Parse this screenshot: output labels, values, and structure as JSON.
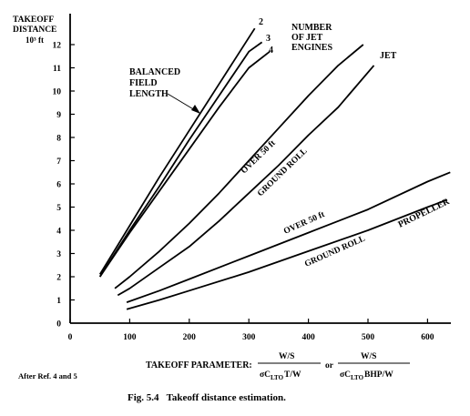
{
  "chart_data": {
    "type": "line",
    "ylabel_lines": [
      "TAKEOFF",
      "DISTANCE"
    ],
    "yunit": "10³ ft",
    "xlabel": "TAKEOFF PARAMETER:",
    "xlim": [
      0,
      650
    ],
    "ylim": [
      0,
      13
    ],
    "xticks": [
      0,
      100,
      200,
      300,
      400,
      500,
      600
    ],
    "yticks": [
      0,
      1,
      2,
      3,
      4,
      5,
      6,
      7,
      8,
      9,
      10,
      11,
      12
    ],
    "grid": false,
    "formula": {
      "jet_numerator": "W/S",
      "jet_denominator": "σC",
      "jet_sub": "LTO",
      "jet_tail": "T/W",
      "or": "or",
      "prop_numerator": "W/S",
      "prop_denominator": "σC",
      "prop_sub": "LTO",
      "prop_tail": "BHP/W"
    },
    "series": [
      {
        "name": "2",
        "x": [
          50,
          100,
          150,
          200,
          250,
          300,
          310
        ],
        "y": [
          2.1,
          4.2,
          6.3,
          8.3,
          10.3,
          12.3,
          12.7
        ]
      },
      {
        "name": "3",
        "x": [
          50,
          100,
          150,
          200,
          250,
          300,
          322
        ],
        "y": [
          2.0,
          4.0,
          5.9,
          7.9,
          9.8,
          11.7,
          12.1
        ]
      },
      {
        "name": "4",
        "x": [
          50,
          100,
          150,
          200,
          250,
          300,
          335
        ],
        "y": [
          2.0,
          3.9,
          5.7,
          7.5,
          9.3,
          11.0,
          11.7
        ]
      },
      {
        "name": "JET OVER 50 ft",
        "x": [
          75,
          100,
          150,
          200,
          250,
          300,
          350,
          400,
          450,
          492
        ],
        "y": [
          1.5,
          2.0,
          3.1,
          4.3,
          5.6,
          7.0,
          8.4,
          9.8,
          11.1,
          12.0
        ]
      },
      {
        "name": "JET GROUND ROLL",
        "x": [
          80,
          100,
          150,
          200,
          250,
          300,
          350,
          400,
          450,
          510
        ],
        "y": [
          1.2,
          1.5,
          2.4,
          3.3,
          4.4,
          5.6,
          6.8,
          8.1,
          9.3,
          11.1
        ]
      },
      {
        "name": "PROPELLER OVER 50 ft",
        "x": [
          95,
          150,
          200,
          300,
          400,
          500,
          600,
          638
        ],
        "y": [
          0.9,
          1.4,
          1.9,
          2.9,
          3.9,
          4.9,
          6.1,
          6.5
        ]
      },
      {
        "name": "PROPELLER GROUND ROLL",
        "x": [
          95,
          150,
          200,
          300,
          400,
          500,
          600,
          632
        ],
        "y": [
          0.6,
          1.0,
          1.4,
          2.2,
          3.1,
          4.0,
          5.0,
          5.3
        ]
      }
    ],
    "annotations": {
      "engine_count_title": [
        "NUMBER",
        "OF JET",
        "ENGINES"
      ],
      "engine_labels": [
        "2",
        "3",
        "4"
      ],
      "balanced_field": [
        "BALANCED",
        "FIELD",
        "LENGTH"
      ],
      "jet": "JET",
      "propeller": "PROPELLER",
      "jet_over50": "OVER 50 ft",
      "jet_ground_roll": "GROUND ROLL",
      "prop_over50": "OVER 50 ft",
      "prop_ground_roll": "GROUND ROLL"
    }
  },
  "source_note": "After Ref. 4 and 5",
  "caption": "Fig. 5.4   Takeoff distance estimation."
}
